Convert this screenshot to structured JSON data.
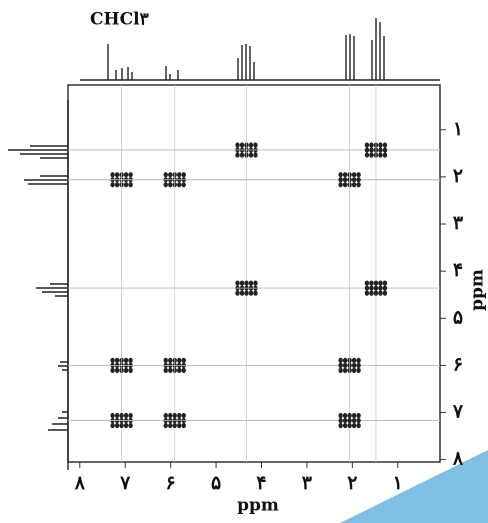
{
  "chart_data": {
    "type": "scatter",
    "annotation": "CHCl۳",
    "xlabel": "ppm",
    "ylabel": "ppm",
    "x": [
      4.33,
      1.48,
      7.08,
      5.91,
      2.06,
      4.33,
      1.48,
      7.08,
      5.91,
      2.06,
      7.08,
      5.91,
      2.06
    ],
    "values": [
      1.43,
      1.43,
      2.06,
      2.06,
      2.06,
      4.36,
      4.36,
      6.0,
      6.0,
      6.0,
      7.17,
      7.17,
      7.17
    ],
    "color": "#222222",
    "xlim": [
      8.26,
      0.07
    ],
    "ylim": [
      0.05,
      8.05
    ],
    "xticks": [
      {
        "value": 8,
        "label": "۸"
      },
      {
        "value": 7,
        "label": "۷"
      },
      {
        "value": 6,
        "label": "۶"
      },
      {
        "value": 5,
        "label": "۵"
      },
      {
        "value": 4,
        "label": "۴"
      },
      {
        "value": 3,
        "label": "۳"
      },
      {
        "value": 2,
        "label": "۲"
      },
      {
        "value": 1,
        "label": "۱"
      }
    ],
    "yticks": [
      {
        "value": 1,
        "label": "۱"
      },
      {
        "value": 2,
        "label": "۲"
      },
      {
        "value": 3,
        "label": "۳"
      },
      {
        "value": 4,
        "label": "۴"
      },
      {
        "value": 5,
        "label": "۵"
      },
      {
        "value": 6,
        "label": "۶"
      },
      {
        "value": 7,
        "label": "۷"
      },
      {
        "value": 8,
        "label": "۸"
      }
    ]
  }
}
